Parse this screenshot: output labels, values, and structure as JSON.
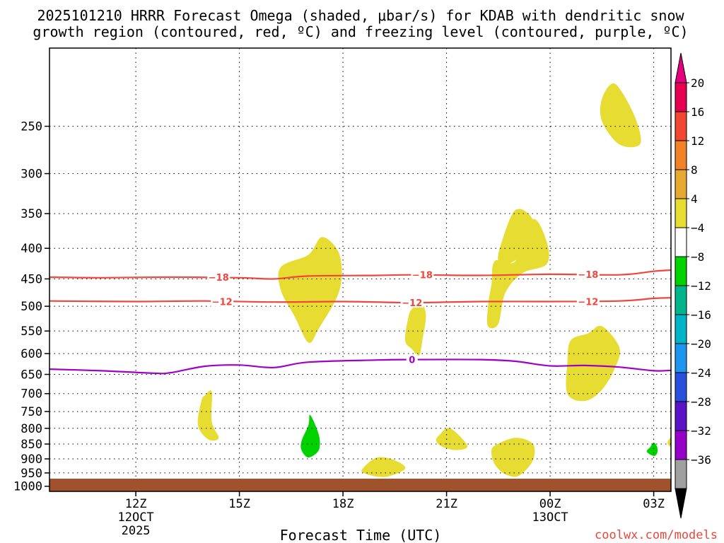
{
  "colors": {
    "plot_bg": "#ffffff",
    "omega_pos_4_8": "#e6dc32",
    "omega_neg_4_8": "#00d200",
    "dgz": "#f0463c",
    "freezing": "#a000c8",
    "ground": "#a0522d"
  },
  "chart_data": {
    "type": "heatmap",
    "title_line1": "2025101210 HRRR Forecast Omega (shaded, μbar/s) for KDAB with dendritic snow",
    "title_line2": "growth region (contoured, red, ºC) and freezing level (contoured, purple, ºC)",
    "xlabel": "Forecast Time (UTC)",
    "watermark": "coolwx.com/models",
    "x_range_hours": [
      9.5,
      27.5
    ],
    "x_ticks": [
      {
        "h": 12,
        "label": "12Z",
        "sub1": "12OCT",
        "sub2": "2025"
      },
      {
        "h": 15,
        "label": "15Z"
      },
      {
        "h": 18,
        "label": "18Z"
      },
      {
        "h": 21,
        "label": "21Z"
      },
      {
        "h": 24,
        "label": "00Z",
        "sub1": "13OCT"
      },
      {
        "h": 27,
        "label": "03Z"
      }
    ],
    "y_range_hpa": [
      1020,
      185
    ],
    "y_ticks": [
      250,
      300,
      350,
      400,
      450,
      500,
      550,
      600,
      650,
      700,
      750,
      800,
      850,
      900,
      950,
      1000
    ],
    "colorbar": {
      "levels": [
        "20",
        "16",
        "12",
        "8",
        "4",
        "−4",
        "−8",
        "−12",
        "−16",
        "−20",
        "−24",
        "−28",
        "−32",
        "−36"
      ],
      "colors": [
        "#e60050",
        "#f04632",
        "#f08228",
        "#e6aa32",
        "#e6dc32",
        "#ffffff",
        "#00d200",
        "#00b48c",
        "#00b4c8",
        "#1e96f0",
        "#2850dc",
        "#5a14c8",
        "#9600c8",
        "#a0a0a0"
      ],
      "top_cap": "#e6007e",
      "bottom_cap": "#000000"
    },
    "contours": [
      {
        "name": "dgz-18C",
        "color": "dgz",
        "label": "−18",
        "points": [
          [
            9.5,
            447
          ],
          [
            11,
            448
          ],
          [
            13,
            447
          ],
          [
            15,
            448
          ],
          [
            16,
            450
          ],
          [
            17,
            445
          ],
          [
            19,
            444
          ],
          [
            20,
            443
          ],
          [
            22,
            444
          ],
          [
            24,
            442
          ],
          [
            26,
            443
          ],
          [
            27,
            437
          ],
          [
            27.5,
            435
          ]
        ],
        "labels_at": [
          [
            14.4,
            447
          ],
          [
            20.3,
            443
          ],
          [
            25.1,
            442
          ]
        ]
      },
      {
        "name": "dgz-12C",
        "color": "dgz",
        "label": "−12",
        "points": [
          [
            9.5,
            490
          ],
          [
            12,
            491
          ],
          [
            14,
            490
          ],
          [
            16,
            492
          ],
          [
            18,
            491
          ],
          [
            20,
            493
          ],
          [
            22,
            491
          ],
          [
            24,
            491
          ],
          [
            26,
            490
          ],
          [
            27,
            485
          ],
          [
            27.5,
            484
          ]
        ],
        "labels_at": [
          [
            14.5,
            491
          ],
          [
            20.0,
            493
          ],
          [
            25.1,
            491
          ]
        ]
      },
      {
        "name": "freezing-0C",
        "color": "freezing",
        "label": "0",
        "points": [
          [
            9.5,
            637
          ],
          [
            11,
            641
          ],
          [
            12.5,
            647
          ],
          [
            13,
            646
          ],
          [
            14,
            630
          ],
          [
            15,
            627
          ],
          [
            16,
            633
          ],
          [
            17,
            620
          ],
          [
            19,
            615
          ],
          [
            20,
            614
          ],
          [
            22,
            614
          ],
          [
            23,
            618
          ],
          [
            24,
            629
          ],
          [
            25,
            628
          ],
          [
            26,
            632
          ],
          [
            27,
            641
          ],
          [
            27.5,
            640
          ]
        ],
        "labels_at": [
          [
            20.0,
            614
          ]
        ]
      }
    ],
    "omega_areas": [
      {
        "value": 4,
        "color": "omega_pos_4_8",
        "points": [
          [
            25.5,
            225
          ],
          [
            25.8,
            212
          ],
          [
            26.1,
            220
          ],
          [
            26.5,
            245
          ],
          [
            26.6,
            268
          ],
          [
            26.0,
            268
          ],
          [
            25.5,
            245
          ]
        ]
      },
      {
        "value": 4,
        "color": "omega_pos_4_8",
        "points": [
          [
            17.0,
            410
          ],
          [
            17.4,
            383
          ],
          [
            17.9,
            410
          ],
          [
            17.9,
            470
          ],
          [
            17.3,
            545
          ],
          [
            17.0,
            575
          ],
          [
            16.6,
            520
          ],
          [
            16.2,
            470
          ],
          [
            16.2,
            430
          ]
        ]
      },
      {
        "value": 4,
        "color": "omega_pos_4_8",
        "points": [
          [
            23.0,
            420
          ],
          [
            23.5,
            358
          ],
          [
            23.9,
            390
          ],
          [
            23.9,
            425
          ],
          [
            23.2,
            440
          ],
          [
            22.7,
            475
          ],
          [
            22.5,
            535
          ],
          [
            22.2,
            540
          ],
          [
            22.2,
            500
          ],
          [
            22.3,
            460
          ],
          [
            22.4,
            420
          ]
        ]
      },
      {
        "value": 4,
        "color": "omega_pos_4_8",
        "points": [
          [
            22.6,
            390
          ],
          [
            23.0,
            345
          ],
          [
            23.5,
            358
          ],
          [
            23.5,
            395
          ],
          [
            22.8,
            425
          ],
          [
            22.5,
            420
          ]
        ]
      },
      {
        "value": 4,
        "color": "omega_pos_4_8",
        "points": [
          [
            20.0,
            505
          ],
          [
            20.2,
            488
          ],
          [
            20.4,
            515
          ],
          [
            20.3,
            570
          ],
          [
            20.2,
            605
          ],
          [
            20.0,
            590
          ],
          [
            19.8,
            570
          ],
          [
            19.9,
            520
          ]
        ]
      },
      {
        "value": 4,
        "color": "omega_pos_4_8",
        "points": [
          [
            25.1,
            555
          ],
          [
            25.5,
            540
          ],
          [
            26.0,
            585
          ],
          [
            25.9,
            630
          ],
          [
            25.5,
            690
          ],
          [
            25.0,
            720
          ],
          [
            24.5,
            700
          ],
          [
            24.5,
            620
          ],
          [
            24.6,
            570
          ]
        ]
      },
      {
        "value": 4,
        "color": "omega_pos_4_8",
        "points": [
          [
            14.0,
            705
          ],
          [
            14.2,
            695
          ],
          [
            14.2,
            780
          ],
          [
            14.4,
            830
          ],
          [
            14.1,
            835
          ],
          [
            13.8,
            790
          ],
          [
            13.9,
            720
          ]
        ]
      },
      {
        "value": 4,
        "color": "omega_pos_4_8",
        "points": [
          [
            20.8,
            820
          ],
          [
            21.1,
            800
          ],
          [
            21.6,
            855
          ],
          [
            21.3,
            870
          ],
          [
            20.9,
            860
          ],
          [
            20.7,
            840
          ]
        ]
      },
      {
        "value": 4,
        "color": "omega_pos_4_8",
        "points": [
          [
            22.4,
            855
          ],
          [
            23.0,
            830
          ],
          [
            23.5,
            850
          ],
          [
            23.5,
            905
          ],
          [
            23.1,
            960
          ],
          [
            22.7,
            955
          ],
          [
            22.4,
            920
          ],
          [
            22.3,
            880
          ]
        ]
      },
      {
        "value": 4,
        "color": "omega_pos_4_8",
        "points": [
          [
            18.6,
            930
          ],
          [
            19.0,
            895
          ],
          [
            19.5,
            905
          ],
          [
            19.8,
            935
          ],
          [
            19.2,
            965
          ],
          [
            18.6,
            950
          ]
        ]
      },
      {
        "value": 4,
        "color": "omega_pos_4_8",
        "points": [
          [
            27.5,
            830
          ],
          [
            27.4,
            845
          ],
          [
            27.5,
            860
          ]
        ]
      },
      {
        "value": -4,
        "color": "omega_neg_4_8",
        "points": [
          [
            17.0,
            790
          ],
          [
            17.05,
            760
          ],
          [
            17.3,
            820
          ],
          [
            17.3,
            870
          ],
          [
            17.0,
            895
          ],
          [
            16.8,
            870
          ],
          [
            16.8,
            840
          ]
        ]
      },
      {
        "value": -4,
        "color": "omega_neg_4_8",
        "points": [
          [
            26.9,
            860
          ],
          [
            27.0,
            845
          ],
          [
            27.1,
            860
          ],
          [
            27.1,
            880
          ],
          [
            27.0,
            890
          ],
          [
            26.8,
            875
          ]
        ]
      }
    ]
  }
}
